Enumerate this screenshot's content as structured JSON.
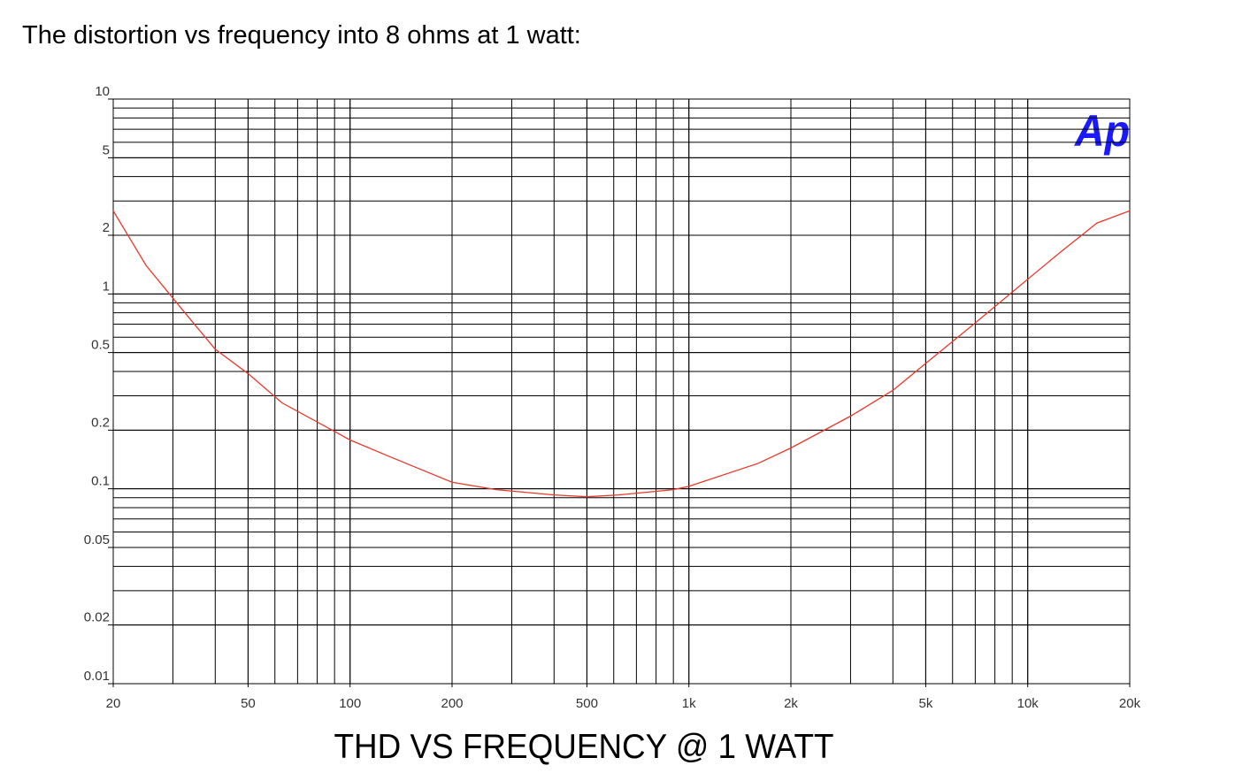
{
  "heading": "The distortion vs frequency into 8 ohms at 1 watt:",
  "chart_data": {
    "type": "line",
    "title": "THD VS FREQUENCY @ 1 WATT",
    "logo": "Ap",
    "x_log": true,
    "y_log": true,
    "grid": true,
    "minor_grid": true,
    "xlim": [
      20,
      20000
    ],
    "xticks": [
      20,
      50,
      100,
      200,
      500,
      {
        "value": 1000,
        "label": "1k"
      },
      {
        "value": 2000,
        "label": "2k"
      },
      {
        "value": 5000,
        "label": "5k"
      },
      {
        "value": 10000,
        "label": "10k"
      },
      {
        "value": 20000,
        "label": "20k"
      }
    ],
    "ylim": [
      0.01,
      10
    ],
    "yticks": [
      0.01,
      0.02,
      0.05,
      0.1,
      0.2,
      0.5,
      1,
      2,
      5,
      10
    ],
    "series": [
      {
        "name": "THD",
        "color": "#e8382a",
        "x": [
          20,
          25,
          32,
          40,
          50,
          63,
          90,
          100,
          130,
          200,
          270,
          400,
          500,
          620,
          900,
          1000,
          1600,
          2000,
          3000,
          4000,
          5000,
          7000,
          10000,
          12500,
          16000,
          20000
        ],
        "values": [
          2.67,
          1.4,
          0.83,
          0.52,
          0.39,
          0.276,
          0.197,
          0.178,
          0.147,
          0.108,
          0.099,
          0.093,
          0.091,
          0.093,
          0.099,
          0.103,
          0.135,
          0.162,
          0.236,
          0.32,
          0.44,
          0.71,
          1.19,
          1.64,
          2.31,
          2.67
        ]
      }
    ]
  }
}
